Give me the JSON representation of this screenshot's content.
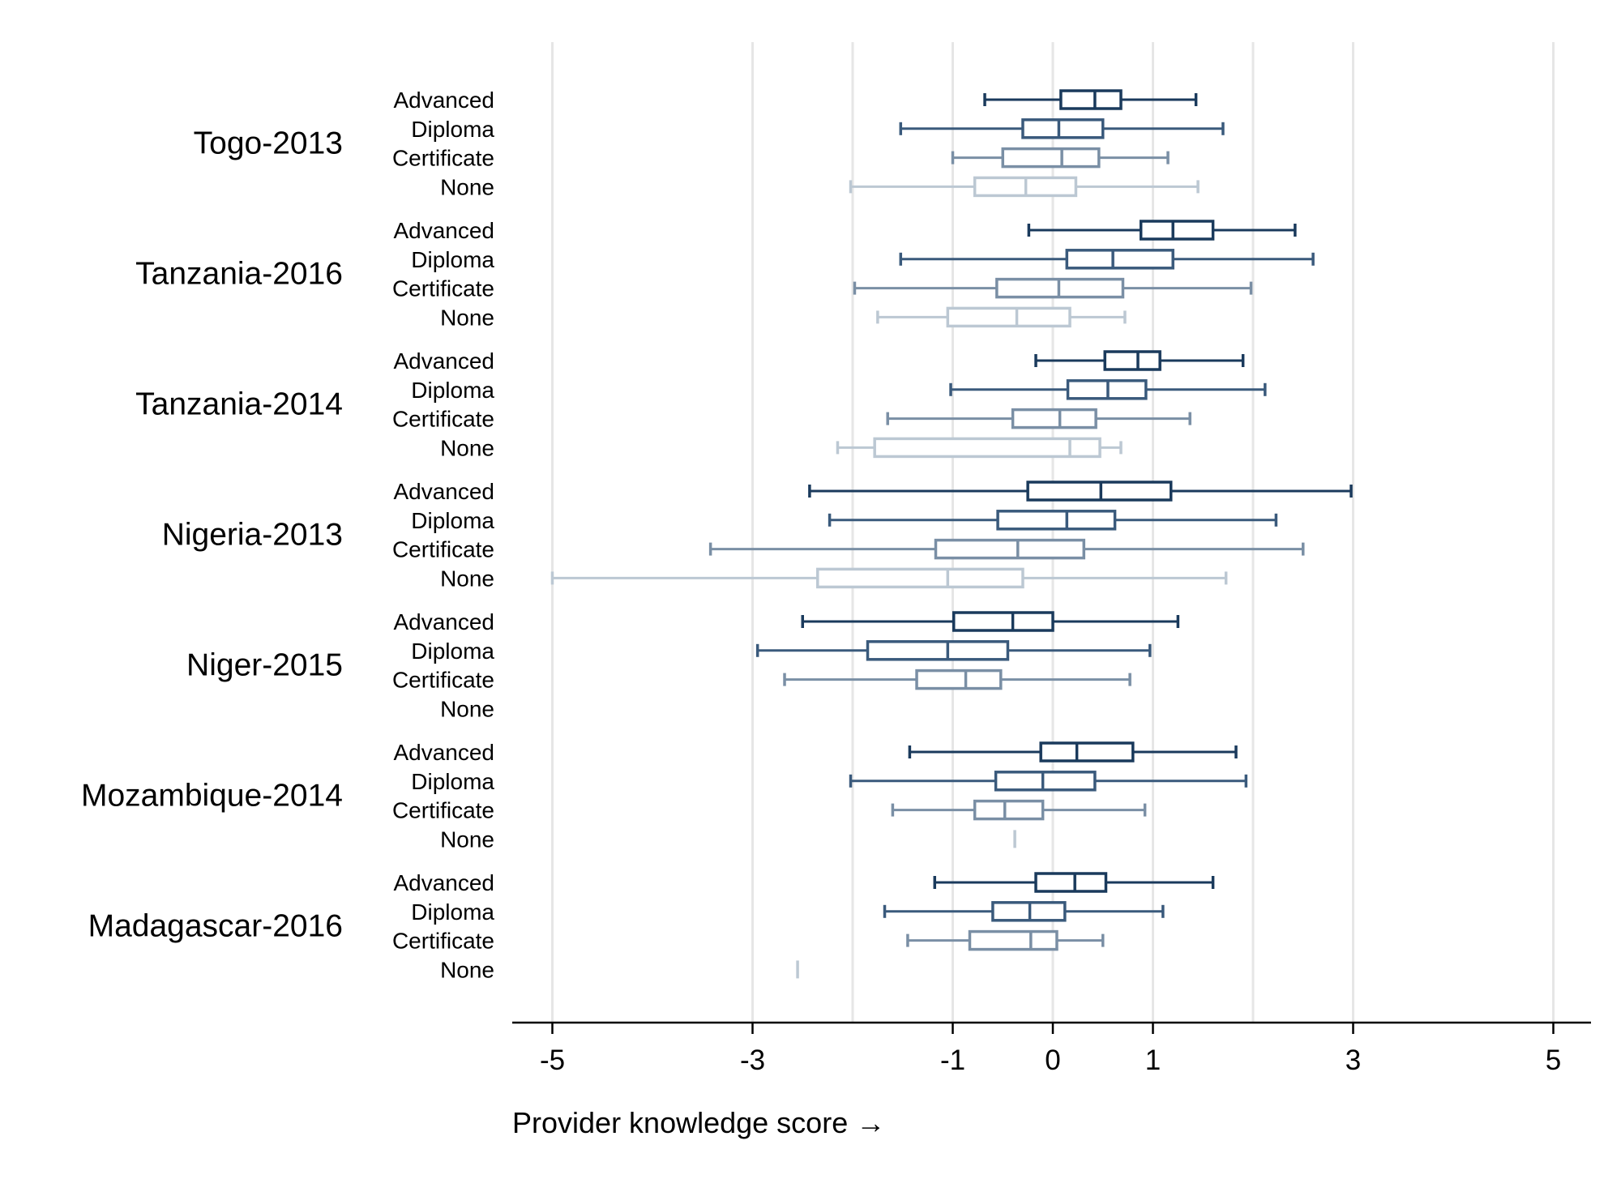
{
  "chart_data": {
    "type": "boxplot",
    "orientation": "horizontal",
    "xlabel": "Provider knowledge score →",
    "xlim": [
      -5.4,
      5.4
    ],
    "x_ticks": [
      -5,
      -3,
      -1,
      0,
      1,
      3,
      5
    ],
    "x_tick_labels": [
      "-5",
      "-3",
      "-1",
      "0",
      "1",
      "3",
      "5"
    ],
    "grid_lines": [
      -5,
      -3,
      -2,
      -1,
      0,
      1,
      2,
      3,
      5
    ],
    "categories": [
      "Advanced",
      "Diploma",
      "Certificate",
      "None"
    ],
    "category_colors": {
      "Advanced": "#1a3a5c",
      "Diploma": "#3a5a7c",
      "Certificate": "#7a8fa5",
      "None": "#bcc8d3"
    },
    "groups": [
      {
        "name": "Togo-2013",
        "boxes": [
          {
            "category": "Advanced",
            "whisker_low": -0.68,
            "q1": 0.08,
            "median": 0.42,
            "q3": 0.68,
            "whisker_high": 1.43
          },
          {
            "category": "Diploma",
            "whisker_low": -1.52,
            "q1": -0.3,
            "median": 0.06,
            "q3": 0.5,
            "whisker_high": 1.7
          },
          {
            "category": "Certificate",
            "whisker_low": -1.0,
            "q1": -0.5,
            "median": 0.09,
            "q3": 0.46,
            "whisker_high": 1.15
          },
          {
            "category": "None",
            "whisker_low": -2.02,
            "q1": -0.78,
            "median": -0.27,
            "q3": 0.23,
            "whisker_high": 1.45
          }
        ]
      },
      {
        "name": "Tanzania-2016",
        "boxes": [
          {
            "category": "Advanced",
            "whisker_low": -0.24,
            "q1": 0.88,
            "median": 1.2,
            "q3": 1.6,
            "whisker_high": 2.42
          },
          {
            "category": "Diploma",
            "whisker_low": -1.52,
            "q1": 0.14,
            "median": 0.6,
            "q3": 1.2,
            "whisker_high": 2.6
          },
          {
            "category": "Certificate",
            "whisker_low": -1.98,
            "q1": -0.56,
            "median": 0.06,
            "q3": 0.7,
            "whisker_high": 1.98
          },
          {
            "category": "None",
            "whisker_low": -1.75,
            "q1": -1.05,
            "median": -0.36,
            "q3": 0.17,
            "whisker_high": 0.72
          }
        ]
      },
      {
        "name": "Tanzania-2014",
        "boxes": [
          {
            "category": "Advanced",
            "whisker_low": -0.17,
            "q1": 0.52,
            "median": 0.85,
            "q3": 1.07,
            "whisker_high": 1.9
          },
          {
            "category": "Diploma",
            "whisker_low": -1.02,
            "q1": 0.15,
            "median": 0.55,
            "q3": 0.93,
            "whisker_high": 2.12
          },
          {
            "category": "Certificate",
            "whisker_low": -1.65,
            "q1": -0.4,
            "median": 0.07,
            "q3": 0.43,
            "whisker_high": 1.37
          },
          {
            "category": "None",
            "whisker_low": -2.15,
            "q1": -1.78,
            "median": 0.17,
            "q3": 0.47,
            "whisker_high": 0.68
          }
        ]
      },
      {
        "name": "Nigeria-2013",
        "boxes": [
          {
            "category": "Advanced",
            "whisker_low": -2.43,
            "q1": -0.25,
            "median": 0.48,
            "q3": 1.18,
            "whisker_high": 2.98
          },
          {
            "category": "Diploma",
            "whisker_low": -2.23,
            "q1": -0.55,
            "median": 0.14,
            "q3": 0.62,
            "whisker_high": 2.23
          },
          {
            "category": "Certificate",
            "whisker_low": -3.42,
            "q1": -1.17,
            "median": -0.35,
            "q3": 0.31,
            "whisker_high": 2.5
          },
          {
            "category": "None",
            "whisker_low": -5.0,
            "q1": -2.35,
            "median": -1.05,
            "q3": -0.3,
            "whisker_high": 1.73
          }
        ]
      },
      {
        "name": "Niger-2015",
        "boxes": [
          {
            "category": "Advanced",
            "whisker_low": -2.5,
            "q1": -0.99,
            "median": -0.4,
            "q3": 0.0,
            "whisker_high": 1.25
          },
          {
            "category": "Diploma",
            "whisker_low": -2.95,
            "q1": -1.85,
            "median": -1.05,
            "q3": -0.45,
            "whisker_high": 0.97
          },
          {
            "category": "Certificate",
            "whisker_low": -2.68,
            "q1": -1.36,
            "median": -0.87,
            "q3": -0.52,
            "whisker_high": 0.77
          }
        ]
      },
      {
        "name": "Mozambique-2014",
        "boxes": [
          {
            "category": "Advanced",
            "whisker_low": -1.43,
            "q1": -0.12,
            "median": 0.24,
            "q3": 0.8,
            "whisker_high": 1.83
          },
          {
            "category": "Diploma",
            "whisker_low": -2.02,
            "q1": -0.57,
            "median": -0.1,
            "q3": 0.42,
            "whisker_high": 1.93
          },
          {
            "category": "Certificate",
            "whisker_low": -1.6,
            "q1": -0.78,
            "median": -0.48,
            "q3": -0.1,
            "whisker_high": 0.92
          },
          {
            "category": "None",
            "single_value": -0.38
          }
        ]
      },
      {
        "name": "Madagascar-2016",
        "boxes": [
          {
            "category": "Advanced",
            "whisker_low": -1.18,
            "q1": -0.17,
            "median": 0.22,
            "q3": 0.53,
            "whisker_high": 1.6
          },
          {
            "category": "Diploma",
            "whisker_low": -1.68,
            "q1": -0.6,
            "median": -0.23,
            "q3": 0.12,
            "whisker_high": 1.1
          },
          {
            "category": "Certificate",
            "whisker_low": -1.45,
            "q1": -0.83,
            "median": -0.22,
            "q3": 0.04,
            "whisker_high": 0.5
          },
          {
            "category": "None",
            "single_value": -2.55
          }
        ]
      }
    ]
  }
}
